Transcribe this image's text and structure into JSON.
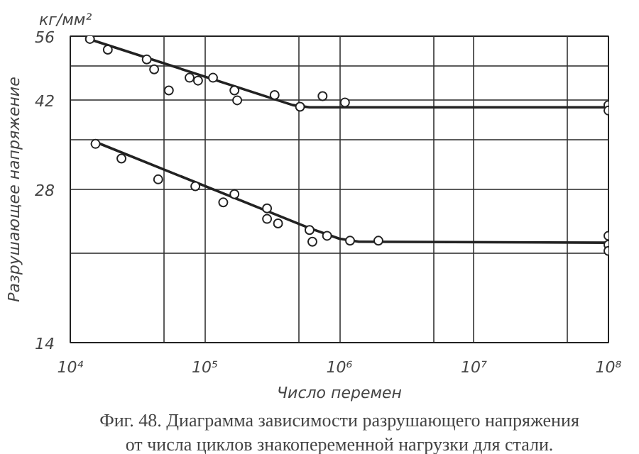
{
  "chart_data": {
    "type": "scatter",
    "xlabel": "Число перемен",
    "ylabel": "Разрушающее напряжение",
    "annotations": [
      "кг/мм²",
      "Фиг. 48. Диаграмма зависимости разрушающего напряжения\nот числа циклов знакопеременной нагрузки для стали."
    ],
    "log": "xy",
    "xlim": [
      10000,
      100000000
    ],
    "ylim": [
      14,
      56
    ],
    "xticks": [
      {
        "value": 10000,
        "label": "10⁴"
      },
      {
        "value": 50000,
        "label": null
      },
      {
        "value": 100000,
        "label": "10⁵"
      },
      {
        "value": 500000,
        "label": null
      },
      {
        "value": 1000000,
        "label": "10⁶"
      },
      {
        "value": 5000000,
        "label": null
      },
      {
        "value": 10000000,
        "label": "10⁷"
      },
      {
        "value": 50000000,
        "label": null
      },
      {
        "value": 100000000,
        "label": "10⁸"
      }
    ],
    "yticks": [
      14,
      {
        "value": 21,
        "label": null
      },
      28,
      {
        "value": 35,
        "label": null
      },
      42,
      {
        "value": 49,
        "label": null
      },
      56
    ],
    "grid": true,
    "marker": "circle",
    "series": [
      {
        "color": "#222222",
        "x": [
          14000,
          19000,
          37000,
          42000,
          54000,
          77000,
          89000,
          115000,
          166000,
          174000,
          330000,
          510000,
          750000,
          1100000,
          100000000,
          100000000
        ],
        "values": [
          55.3,
          52.7,
          50.4,
          48.2,
          43.8,
          46.4,
          45.8,
          46.4,
          43.8,
          41.9,
          42.9,
          40.7,
          42.7,
          41.5,
          41.0,
          40.0
        ]
      },
      {
        "color": "#222222",
        "x": [
          15400,
          24000,
          45000,
          85000,
          137000,
          166000,
          290000,
          290000,
          350000,
          600000,
          630000,
          810000,
          1200000,
          1950000,
          100000000,
          100000000,
          100000000
        ],
        "values": [
          34.4,
          32.2,
          29.3,
          28.4,
          26.4,
          27.4,
          25.7,
          24.5,
          24.0,
          23.3,
          22.1,
          22.7,
          22.2,
          22.2,
          22.7,
          21.8,
          21.2
        ]
      },
      {
        "type": "line",
        "color": "#222222",
        "marker": "none",
        "x": [
          14000,
          450000,
          600000,
          100000000
        ],
        "values": [
          55.2,
          41.0,
          40.6,
          40.6
        ]
      },
      {
        "type": "line",
        "color": "#222222",
        "marker": "none",
        "x": [
          15000,
          600000,
          1000000,
          1400000,
          100000000
        ],
        "values": [
          34.8,
          23.5,
          22.4,
          22.1,
          22.0
        ]
      }
    ]
  }
}
